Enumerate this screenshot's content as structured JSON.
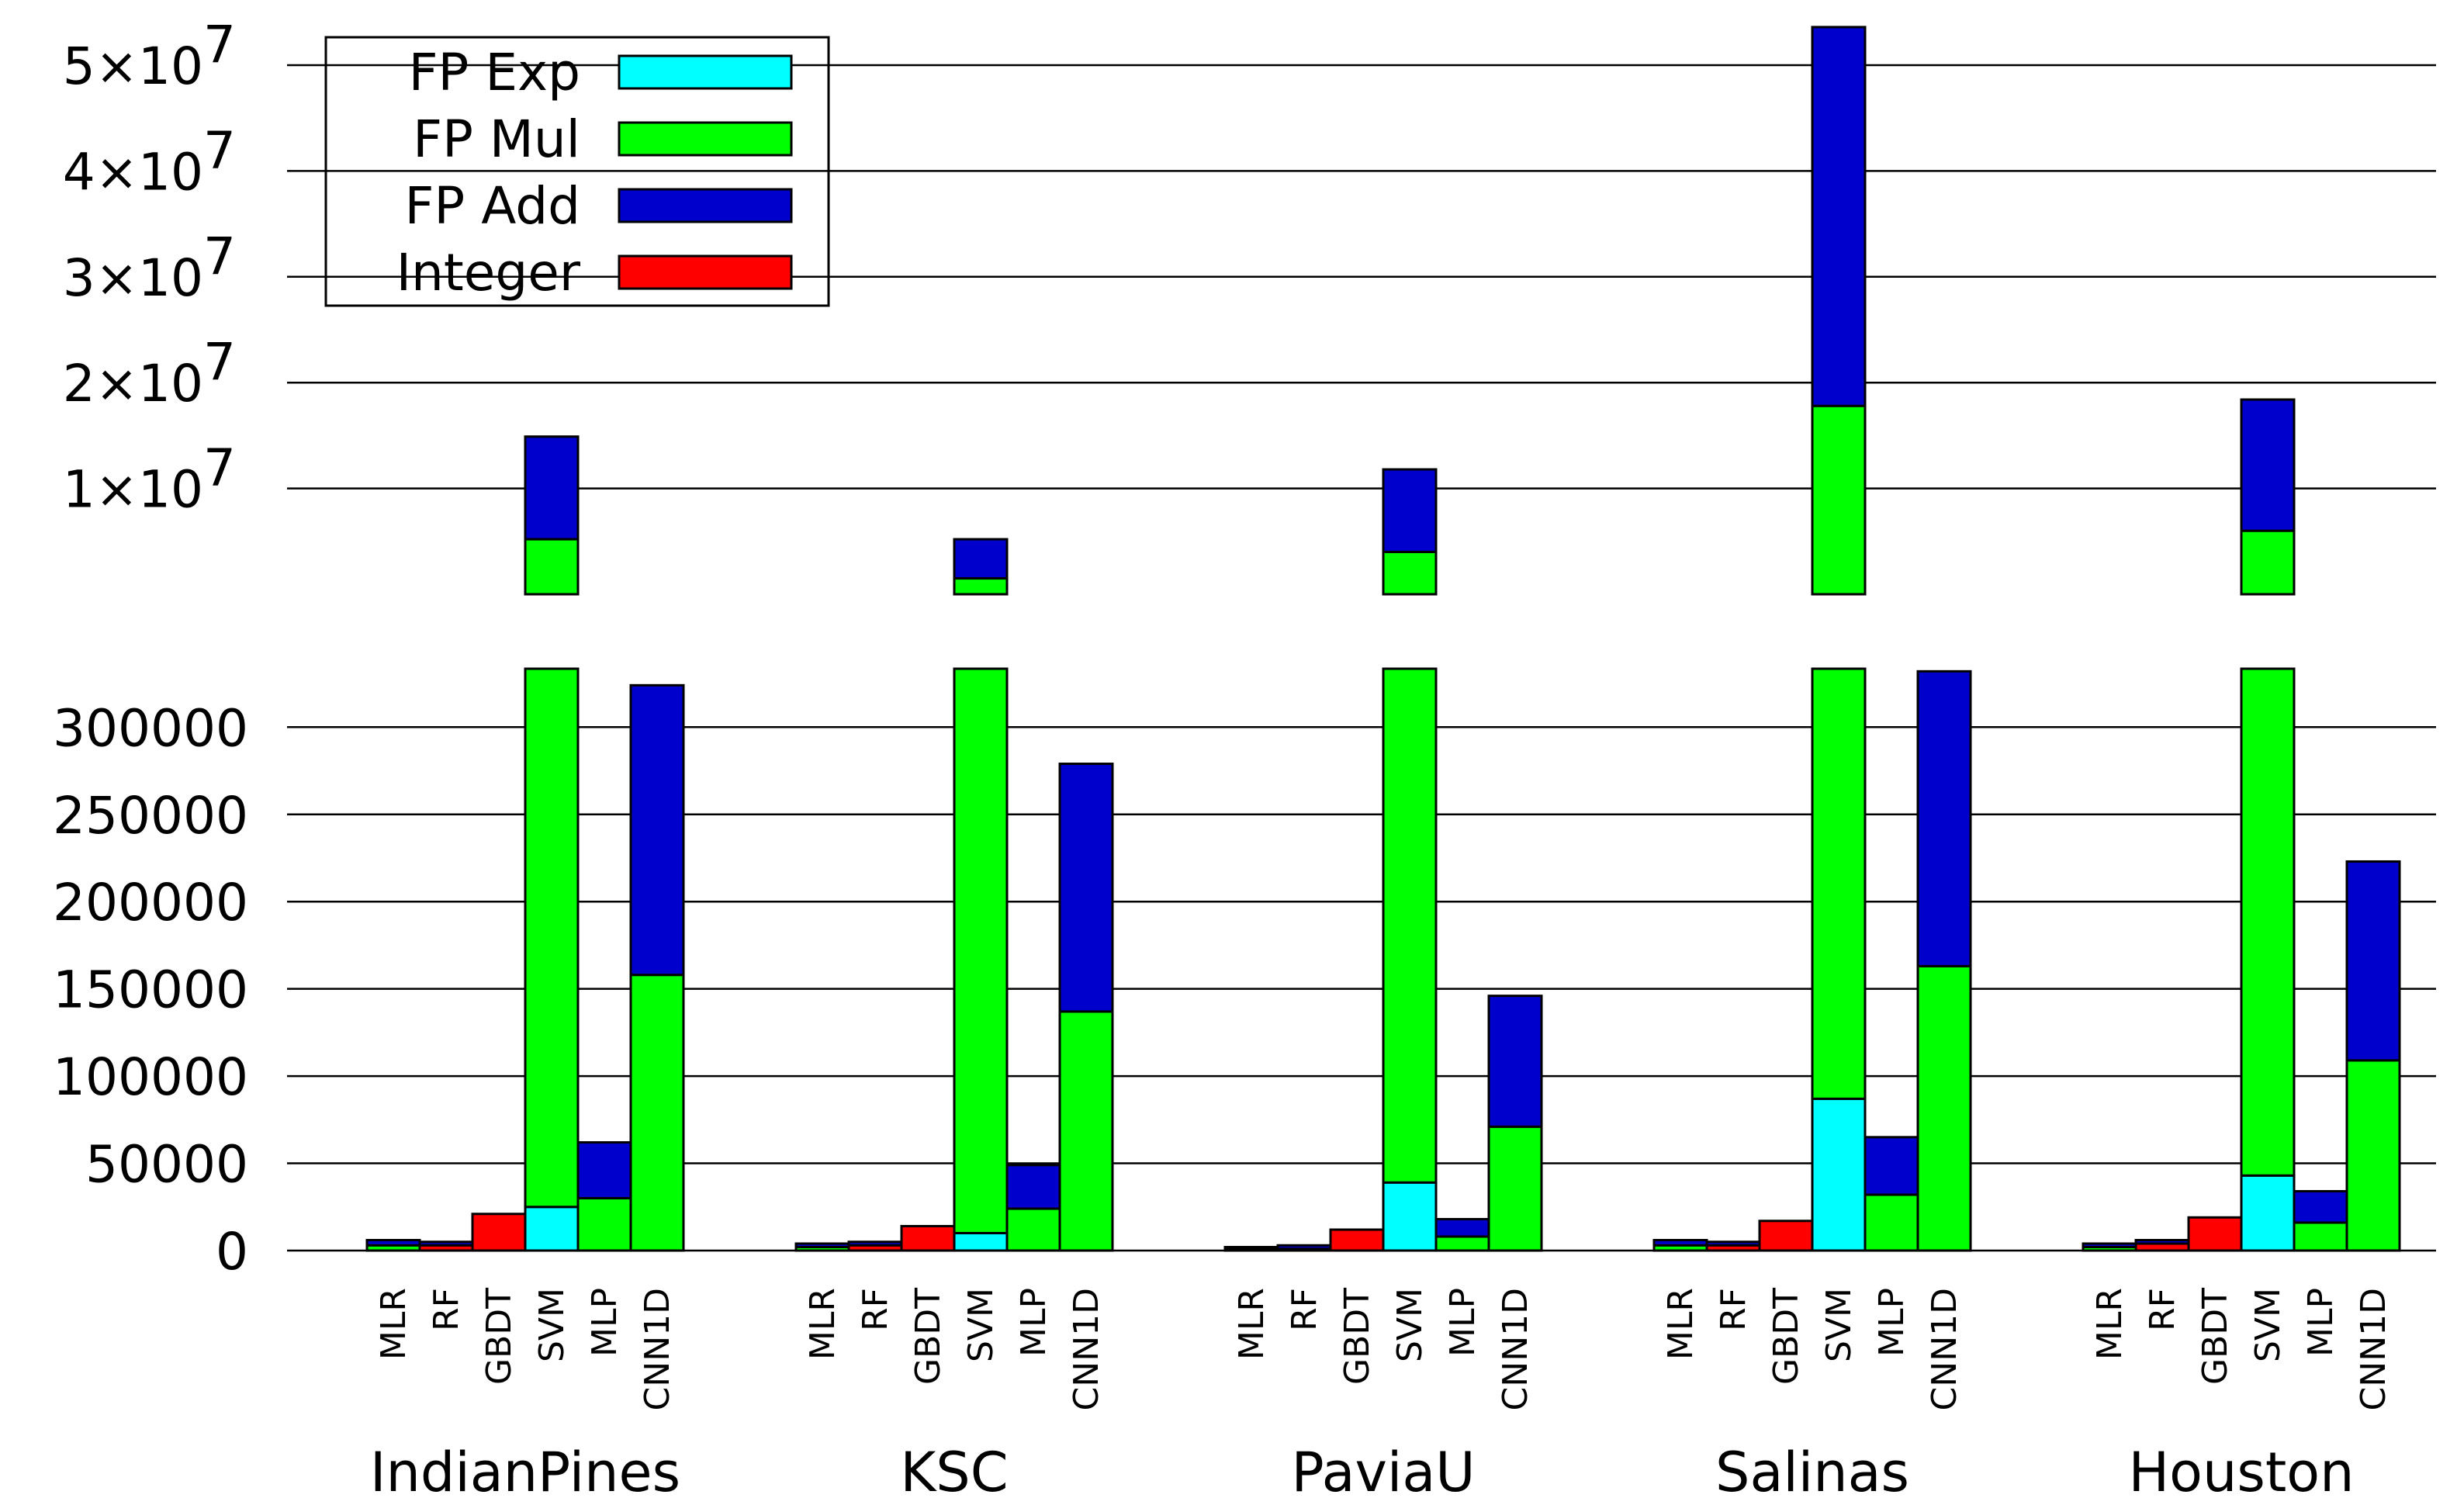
{
  "chart_data": {
    "type": "bar",
    "stacked": true,
    "title": "",
    "xlabel": "",
    "ylabel": "",
    "axis_break": true,
    "legend_position": "top-left",
    "grid": true,
    "series": [
      {
        "name": "FP Exp",
        "color": "#00ffff",
        "key": "exp"
      },
      {
        "name": "FP Mul",
        "color": "#00ff00",
        "key": "mul"
      },
      {
        "name": "FP Add",
        "color": "#0000cd",
        "key": "add"
      },
      {
        "name": "Integer",
        "color": "#ff0000",
        "key": "int"
      }
    ],
    "stack_order": [
      "int",
      "exp",
      "mul",
      "add"
    ],
    "lower_axis": {
      "ylim": [
        0,
        335000
      ],
      "ticks": [
        "0",
        "50000",
        "100000",
        "150000",
        "200000",
        "250000",
        "300000"
      ],
      "tick_values": [
        0,
        50000,
        100000,
        150000,
        200000,
        250000,
        300000
      ]
    },
    "upper_axis": {
      "ylim": [
        0,
        54000000
      ],
      "ticks": [
        "1×10",
        "2×10",
        "3×10",
        "4×10",
        "5×10"
      ],
      "tick_exponent": "7",
      "tick_values": [
        10000000,
        20000000,
        30000000,
        40000000,
        50000000
      ]
    },
    "groups": [
      {
        "dataset": "IndianPines",
        "models": [
          {
            "label": "MLR",
            "int": 0,
            "exp": 0,
            "mul": 3000,
            "add": 3000
          },
          {
            "label": "RF",
            "int": 3000,
            "exp": 0,
            "mul": 0,
            "add": 2000
          },
          {
            "label": "GBDT",
            "int": 21000,
            "exp": 0,
            "mul": 0,
            "add": 0
          },
          {
            "label": "SVM",
            "int": 0,
            "exp": 25000,
            "mul": 5200000,
            "add": 9700000
          },
          {
            "label": "MLP",
            "int": 0,
            "exp": 0,
            "mul": 30000,
            "add": 32000
          },
          {
            "label": "CNN1D",
            "int": 0,
            "exp": 0,
            "mul": 158000,
            "add": 166000
          }
        ]
      },
      {
        "dataset": "KSC",
        "models": [
          {
            "label": "MLR",
            "int": 0,
            "exp": 0,
            "mul": 2000,
            "add": 2000
          },
          {
            "label": "RF",
            "int": 3000,
            "exp": 0,
            "mul": 0,
            "add": 2000
          },
          {
            "label": "GBDT",
            "int": 14000,
            "exp": 0,
            "mul": 0,
            "add": 0
          },
          {
            "label": "SVM",
            "int": 0,
            "exp": 10000,
            "mul": 1500000,
            "add": 3700000
          },
          {
            "label": "MLP",
            "int": 0,
            "exp": 0,
            "mul": 24000,
            "add": 25000
          },
          {
            "label": "CNN1D",
            "int": 0,
            "exp": 0,
            "mul": 137000,
            "add": 142000
          }
        ]
      },
      {
        "dataset": "PaviaU",
        "models": [
          {
            "label": "MLR",
            "int": 0,
            "exp": 0,
            "mul": 1000,
            "add": 1000
          },
          {
            "label": "RF",
            "int": 1000,
            "exp": 0,
            "mul": 0,
            "add": 2000
          },
          {
            "label": "GBDT",
            "int": 12000,
            "exp": 0,
            "mul": 0,
            "add": 0
          },
          {
            "label": "SVM",
            "int": 0,
            "exp": 39000,
            "mul": 4000000,
            "add": 7800000
          },
          {
            "label": "MLP",
            "int": 0,
            "exp": 0,
            "mul": 8000,
            "add": 10000
          },
          {
            "label": "CNN1D",
            "int": 0,
            "exp": 0,
            "mul": 71000,
            "add": 75000
          }
        ]
      },
      {
        "dataset": "Salinas",
        "models": [
          {
            "label": "MLR",
            "int": 0,
            "exp": 0,
            "mul": 3000,
            "add": 3000
          },
          {
            "label": "RF",
            "int": 3000,
            "exp": 0,
            "mul": 0,
            "add": 2000
          },
          {
            "label": "GBDT",
            "int": 17000,
            "exp": 0,
            "mul": 0,
            "add": 0
          },
          {
            "label": "SVM",
            "int": 0,
            "exp": 87000,
            "mul": 17800000,
            "add": 35800000
          },
          {
            "label": "MLP",
            "int": 0,
            "exp": 0,
            "mul": 32000,
            "add": 33000
          },
          {
            "label": "CNN1D",
            "int": 0,
            "exp": 0,
            "mul": 163000,
            "add": 169000
          }
        ]
      },
      {
        "dataset": "Houston",
        "models": [
          {
            "label": "MLR",
            "int": 0,
            "exp": 0,
            "mul": 2000,
            "add": 2000
          },
          {
            "label": "RF",
            "int": 4000,
            "exp": 0,
            "mul": 0,
            "add": 2000
          },
          {
            "label": "GBDT",
            "int": 19000,
            "exp": 0,
            "mul": 0,
            "add": 0
          },
          {
            "label": "SVM",
            "int": 0,
            "exp": 43000,
            "mul": 6000000,
            "add": 12400000
          },
          {
            "label": "MLP",
            "int": 0,
            "exp": 0,
            "mul": 16000,
            "add": 18000
          },
          {
            "label": "CNN1D",
            "int": 0,
            "exp": 0,
            "mul": 109000,
            "add": 114000
          }
        ]
      }
    ]
  }
}
